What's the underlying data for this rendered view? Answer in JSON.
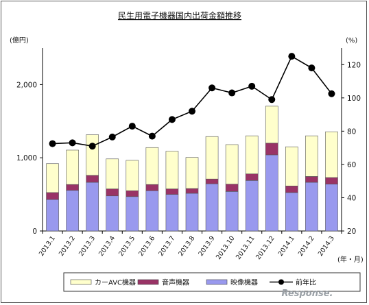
{
  "chart_data": {
    "type": "bar",
    "stacked": true,
    "title": "民生用電子機器国内出荷金額推移",
    "left_unit": "(億円)",
    "right_unit": "(%)",
    "x_unit": "(年・月)",
    "categories": [
      "2013.1",
      "2013.2",
      "2013.3",
      "2013.4",
      "2013.5",
      "2013.6",
      "2013.7",
      "2013.8",
      "2013.9",
      "2013.10",
      "2013.11",
      "2013.12",
      "2014.1",
      "2014.2",
      "2014.3"
    ],
    "series": [
      {
        "name": "映像機器",
        "axis": "left",
        "color": "#9999ee",
        "values": [
          430,
          555,
          665,
          480,
          470,
          550,
          500,
          515,
          645,
          540,
          690,
          1040,
          525,
          665,
          640
        ]
      },
      {
        "name": "音声機器",
        "axis": "left",
        "color": "#993366",
        "values": [
          95,
          80,
          95,
          95,
          80,
          85,
          75,
          65,
          65,
          100,
          90,
          160,
          90,
          80,
          90
        ]
      },
      {
        "name": "カーAVC機器",
        "axis": "left",
        "color": "#ffffcc",
        "values": [
          395,
          470,
          555,
          410,
          415,
          505,
          515,
          425,
          580,
          540,
          520,
          505,
          535,
          555,
          625
        ]
      },
      {
        "name": "前年比",
        "axis": "right",
        "type": "line",
        "color": "#000000",
        "values": [
          72.5,
          73,
          71,
          76.5,
          83,
          77,
          87,
          92,
          106,
          103,
          107,
          99,
          125,
          118,
          102.5
        ]
      }
    ],
    "left_axis": {
      "ylim": [
        0,
        2500
      ],
      "ticks": [
        0,
        1000,
        2000
      ],
      "tick_labels": [
        "0",
        "1,000",
        "2,000"
      ]
    },
    "right_axis": {
      "ylim": [
        20,
        130
      ],
      "ticks": [
        20,
        40,
        60,
        80,
        100,
        120
      ],
      "tick_labels": [
        "20",
        "40",
        "60",
        "80",
        "100",
        "120"
      ]
    },
    "legend": {
      "position": "bottom",
      "order": [
        "カーAVC機器",
        "音声機器",
        "映像機器",
        "前年比"
      ]
    },
    "grid": false
  },
  "watermark": "Response."
}
